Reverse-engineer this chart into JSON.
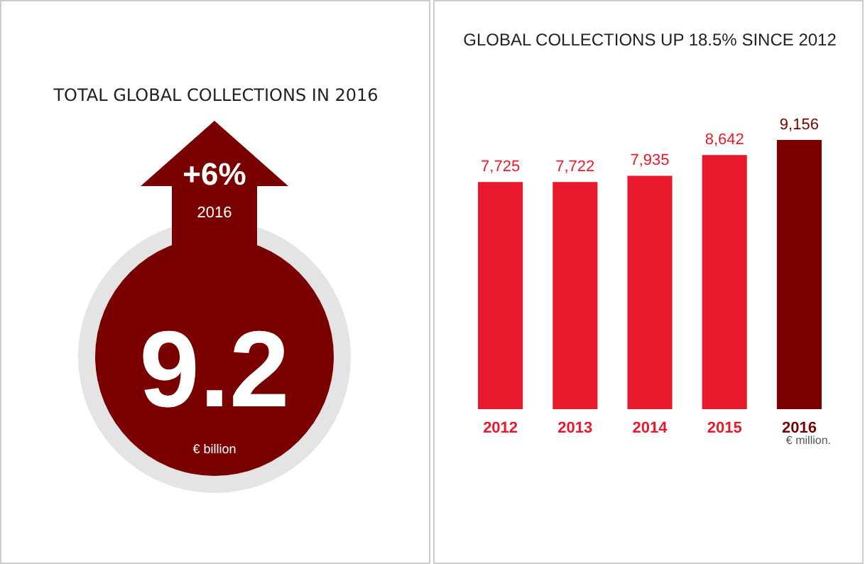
{
  "chart_data": [
    {
      "type": "other",
      "title": "TOTAL GLOBAL COLLECTIONS IN 2016",
      "annotations": [
        "+6%",
        "2016",
        "9.2",
        "€ billion"
      ],
      "color": "#7a0000"
    },
    {
      "type": "bar",
      "title": "GLOBAL COLLECTIONS UP 18.5% SINCE 2012",
      "categories": [
        "2012",
        "2013",
        "2014",
        "2015",
        "2016"
      ],
      "values": [
        7725,
        7722,
        7935,
        8642,
        9156
      ],
      "colors": [
        "#e8192c",
        "#e8192c",
        "#e8192c",
        "#e8192c",
        "#7a0000"
      ],
      "value_labels": [
        "7,725",
        "7,722",
        "7,935",
        "8,642",
        "9,156"
      ],
      "tick_labels": "x",
      "annotations": [
        "€ million."
      ]
    }
  ]
}
